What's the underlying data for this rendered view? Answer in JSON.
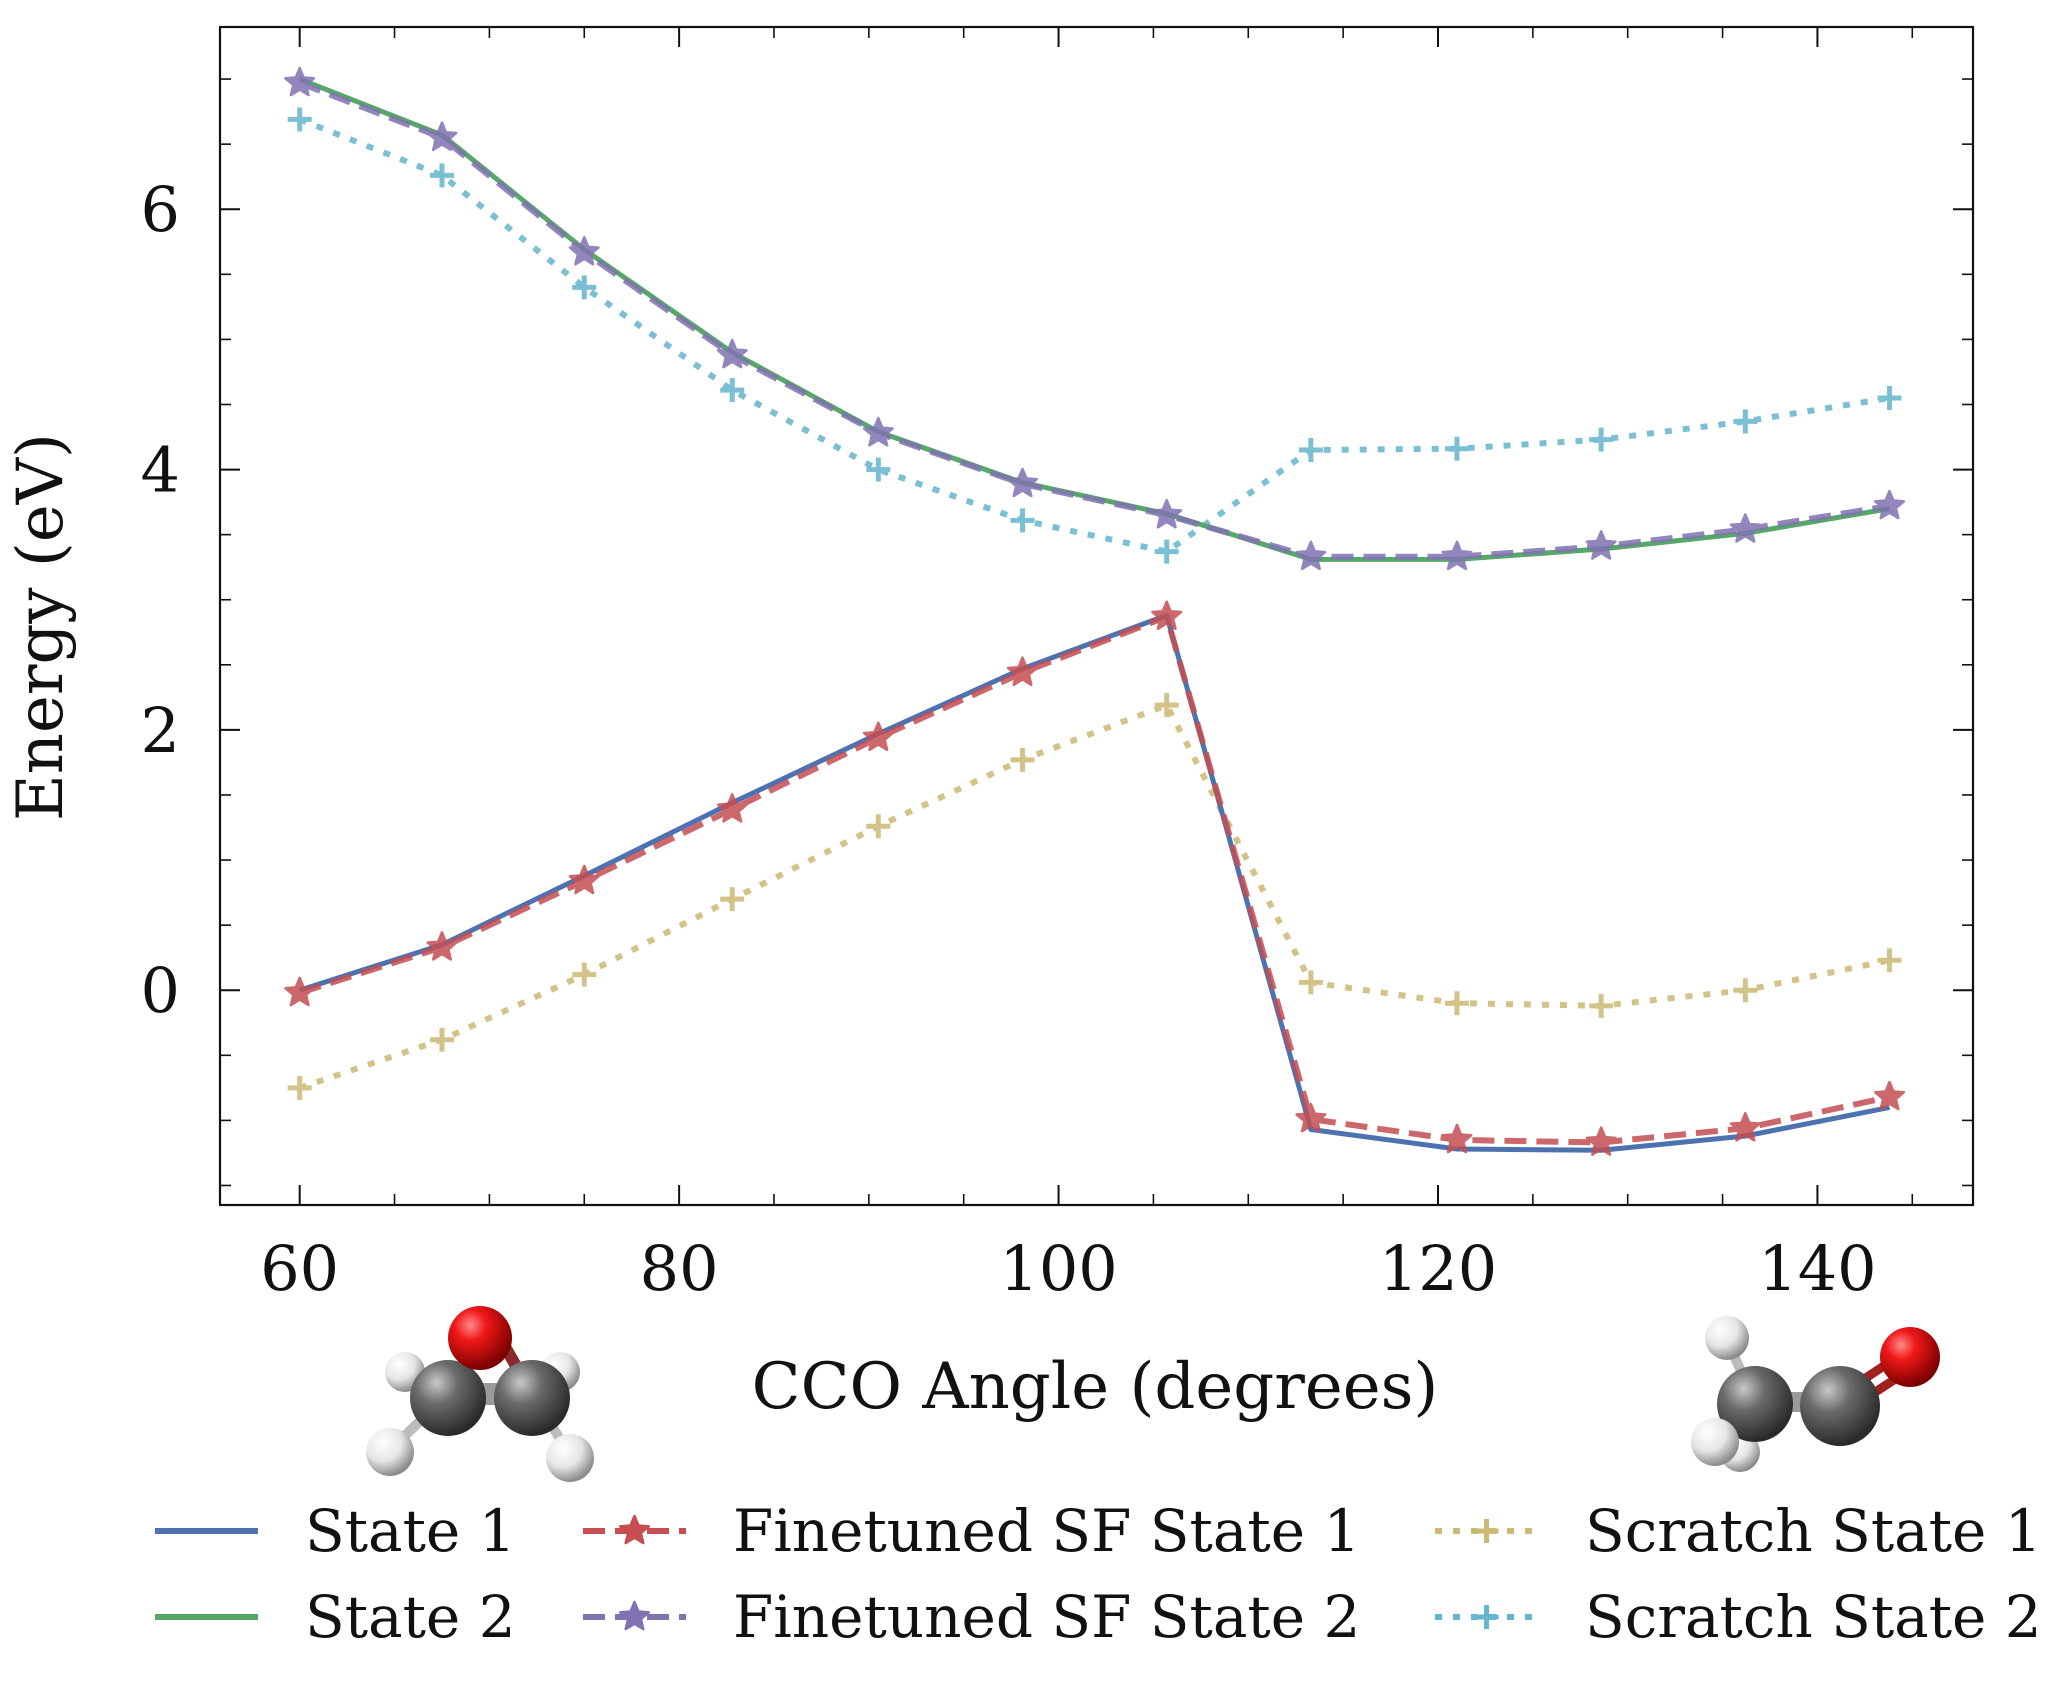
{
  "chart_data": {
    "type": "line",
    "title": "",
    "xlabel": "CCO Angle (degrees)",
    "ylabel": "Energy (eV)",
    "xlim": [
      55.8,
      148.2
    ],
    "ylim": [
      -1.65,
      7.4
    ],
    "x_ticks": [
      60,
      80,
      100,
      120,
      140
    ],
    "y_ticks": [
      0,
      2,
      4,
      6
    ],
    "x_minor_step": 5,
    "y_minor_step": 0.5,
    "tick_direction": "in",
    "grid": false,
    "legend_position": "bottom, 3 columns",
    "x": [
      60,
      67.5,
      75,
      82.8,
      90.5,
      98.1,
      105.7,
      113.3,
      121,
      128.6,
      136.2,
      143.8
    ],
    "series": [
      {
        "name": "State 1",
        "color": "#4C72B0",
        "style": "solid",
        "marker": "none",
        "values": [
          0,
          0.35,
          0.88,
          1.44,
          1.97,
          2.47,
          2.88,
          -1.07,
          -1.22,
          -1.23,
          -1.12,
          -0.9
        ]
      },
      {
        "name": "State 2",
        "color": "#55A868",
        "style": "solid",
        "marker": "none",
        "values": [
          7.0,
          6.57,
          5.69,
          4.9,
          4.29,
          3.9,
          3.66,
          3.31,
          3.31,
          3.39,
          3.51,
          3.7
        ]
      },
      {
        "name": "Finetuned SF State 1",
        "color": "#C44E52",
        "style": "dashed",
        "marker": "star",
        "values": [
          -0.02,
          0.33,
          0.84,
          1.39,
          1.94,
          2.44,
          2.87,
          -0.99,
          -1.15,
          -1.17,
          -1.06,
          -0.82
        ]
      },
      {
        "name": "Finetuned SF State 2",
        "color": "#8172B2",
        "style": "dashed",
        "marker": "star",
        "values": [
          6.97,
          6.55,
          5.67,
          4.88,
          4.28,
          3.89,
          3.65,
          3.33,
          3.33,
          3.41,
          3.54,
          3.72
        ]
      },
      {
        "name": "Scratch State 1",
        "color": "#CCB974",
        "style": "dotted",
        "marker": "plus",
        "values": [
          -0.75,
          -0.38,
          0.12,
          0.7,
          1.26,
          1.77,
          2.19,
          0.06,
          -0.1,
          -0.12,
          0.0,
          0.23
        ]
      },
      {
        "name": "Scratch State 2",
        "color": "#64B5CD",
        "style": "dotted",
        "marker": "plus",
        "values": [
          6.69,
          6.26,
          5.4,
          4.61,
          4.0,
          3.61,
          3.37,
          4.15,
          4.16,
          4.23,
          4.37,
          4.55
        ]
      }
    ],
    "annotations": [
      {
        "name": "epoxide-molecule-icon",
        "position": "below x-axis, left"
      },
      {
        "name": "ketene-molecule-icon",
        "position": "below x-axis, right"
      }
    ]
  }
}
